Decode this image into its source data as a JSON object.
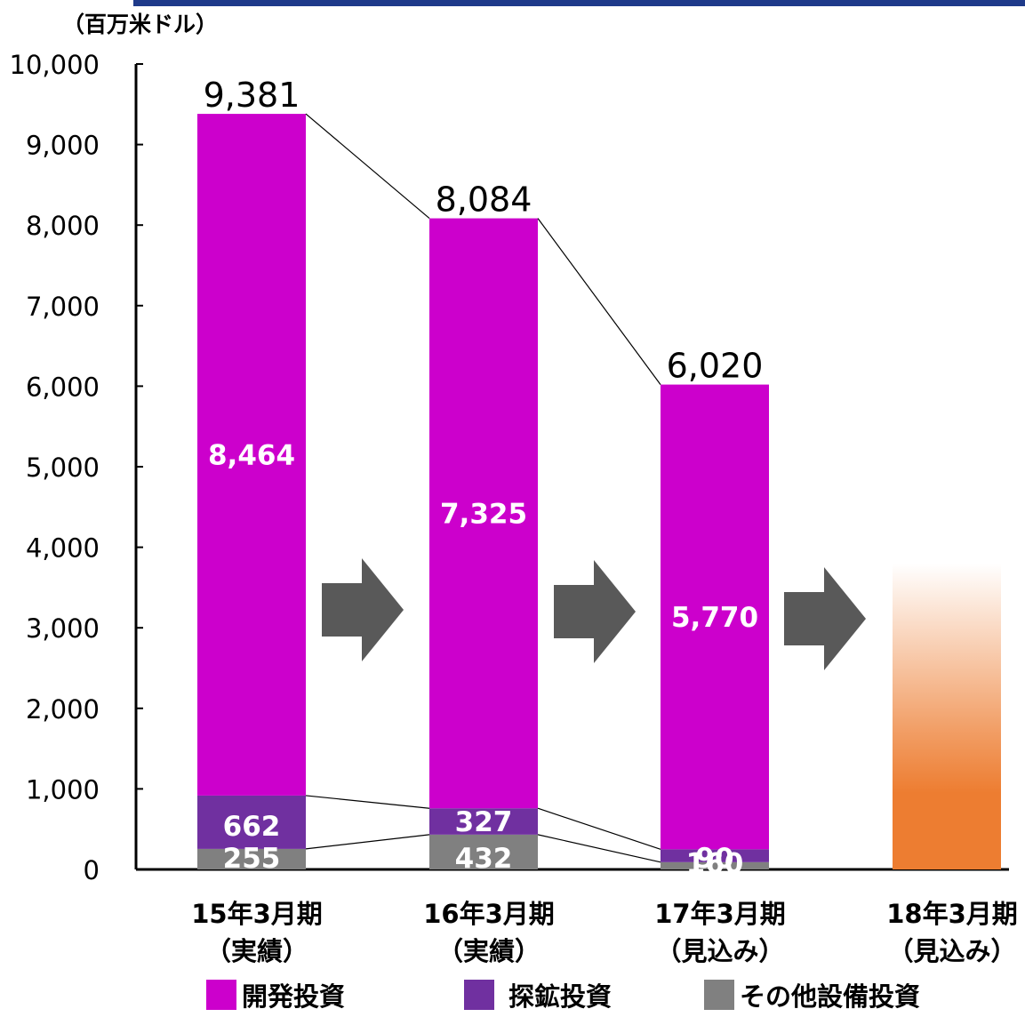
{
  "chart_data": {
    "type": "bar",
    "stacked": true,
    "unit_label": "（百万米ドル）",
    "categories": [
      {
        "line1": "15年3月期",
        "line2": "（実績）"
      },
      {
        "line1": "16年3月期",
        "line2": "（実績）"
      },
      {
        "line1": "17年3月期",
        "line2": "（見込み）"
      },
      {
        "line1": "18年3月期",
        "line2": "（見込み）"
      }
    ],
    "series": [
      {
        "name": "その他設備投資",
        "color": "#808080",
        "values": [
          255,
          432,
          90,
          null
        ],
        "labels": [
          "255",
          "432",
          "90",
          ""
        ]
      },
      {
        "name": "探鉱投資",
        "color": "#7030a0",
        "values": [
          662,
          327,
          160,
          null
        ],
        "labels": [
          "662",
          "327",
          "160",
          ""
        ]
      },
      {
        "name": "開発投資",
        "color": "#cc00cc",
        "values": [
          8464,
          7325,
          5770,
          null
        ],
        "labels": [
          "8,464",
          "7,325",
          "5,770",
          ""
        ]
      }
    ],
    "totals": [
      9381,
      8084,
      6020,
      null
    ],
    "total_labels": [
      "9,381",
      "8,084",
      "6,020",
      ""
    ],
    "forecast_bar": {
      "category_index": 3,
      "approx_value": 3800,
      "color": "#ed7d31",
      "style": "gradient-fade-top"
    },
    "y_ticks": [
      "0",
      "1,000",
      "2,000",
      "3,000",
      "4,000",
      "5,000",
      "6,000",
      "7,000",
      "8,000",
      "9,000",
      "10,000"
    ],
    "ylim": [
      0,
      10000
    ],
    "arrows_between_bars": 3,
    "arrow_color": "#595959",
    "legend_order": [
      "開発投資",
      "探鉱投資",
      "その他設備投資"
    ],
    "legend_colors": [
      "#cc00cc",
      "#7030a0",
      "#808080"
    ],
    "legend_placement": "bottom"
  },
  "theme": {
    "top_rule_color": "#1f3a8a"
  }
}
